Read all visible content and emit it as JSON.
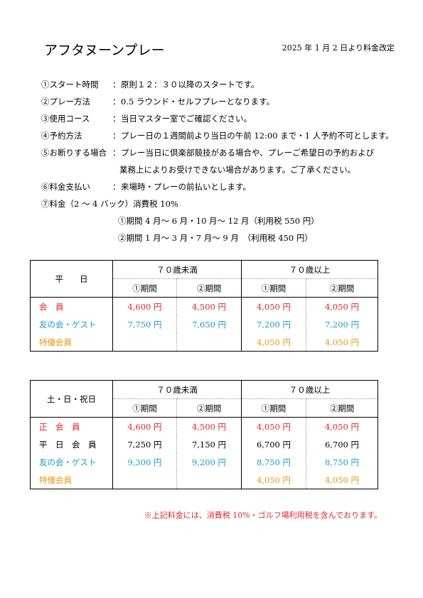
{
  "title": "アフタヌーンプレー",
  "revision_note": "2025 年 1 月 2 日より料金改定",
  "rules": [
    {
      "label": "①スタート時間",
      "colon": "：",
      "value": "原則１２：３０以降のスタートです。"
    },
    {
      "label": "②プレー方法",
      "colon": "：",
      "value": "0.5 ラウンド・セルフプレーとなります。"
    },
    {
      "label": "③使用コース",
      "colon": "：",
      "value": "当日マスター室でご確認ください。"
    },
    {
      "label": "④予約方法",
      "colon": "：",
      "value": "プレー日の１週間前より当日の午前 12:00 まで・1 人予約不可とします。"
    },
    {
      "label": "⑤お断りする場合",
      "colon": "：",
      "value": "プレー当日に倶楽部競技がある場合や、プレーご希望日の予約および"
    },
    {
      "label": "",
      "colon": "",
      "value": "業務上によりお受けできない場合があります。ご了承ください。"
    },
    {
      "label": "⑥料金支払い",
      "colon": "：",
      "value": "来場時・プレーの前払いとします。"
    },
    {
      "label": "⑦料金（2 ～ 4 バック）消費税 10%",
      "colon": "",
      "value": ""
    },
    {
      "label": "",
      "colon": "",
      "value": "①期間 4 月～ 6 月・10 月～ 12 月（利用税 550 円）"
    },
    {
      "label": "",
      "colon": "",
      "value": "②期間 1 月～ 3 月・7 月～ 9 月　（利用税 450 円）"
    }
  ],
  "colors": {
    "member": "#e0262b",
    "guest": "#1a9ad6",
    "special": "#eb9712",
    "regular": "#000000"
  },
  "tables": [
    {
      "day_label": "平　　日",
      "group_under70": "７０歳未満",
      "group_over70": "７０歳以上",
      "sub_headers": [
        "①期間",
        "②期間",
        "①期間",
        "②期間"
      ],
      "rows": [
        {
          "category": "会　員",
          "color": "red",
          "prices": [
            "4,600 円",
            "4,500 円",
            "4,050 円",
            "4,050 円"
          ]
        },
        {
          "category": "友の会・ゲスト",
          "color": "blue",
          "prices": [
            "7,750 円",
            "7,650 円",
            "7,200 円",
            "7,200 円"
          ]
        },
        {
          "category": "特優会員",
          "color": "orange",
          "prices": [
            "",
            "",
            "4,050 円",
            "4,050 円"
          ]
        }
      ]
    },
    {
      "day_label": "土・日・祝日",
      "group_under70": "７０歳未満",
      "group_over70": "７０歳以上",
      "sub_headers": [
        "①期間",
        "②期間",
        "①期間",
        "②期間"
      ],
      "rows": [
        {
          "category": "正　会　員",
          "color": "red",
          "prices": [
            "4,600 円",
            "4,500 円",
            "4,050 円",
            "4,050 円"
          ]
        },
        {
          "category": "平　日　会　員",
          "color": "blk",
          "prices": [
            "7,250 円",
            "7,150 円",
            "6,700 円",
            "6,700 円"
          ]
        },
        {
          "category": "友の会・ゲスト",
          "color": "blue",
          "prices": [
            "9,300 円",
            "9,200 円",
            "8,750 円",
            "8,750 円"
          ]
        },
        {
          "category": "特優会員",
          "color": "orange",
          "prices": [
            "",
            "",
            "4,050 円",
            "4,050 円"
          ]
        }
      ]
    }
  ],
  "footnote": "※上記料金には、消費税 10%・ゴルフ場利用税を含んでおります。"
}
